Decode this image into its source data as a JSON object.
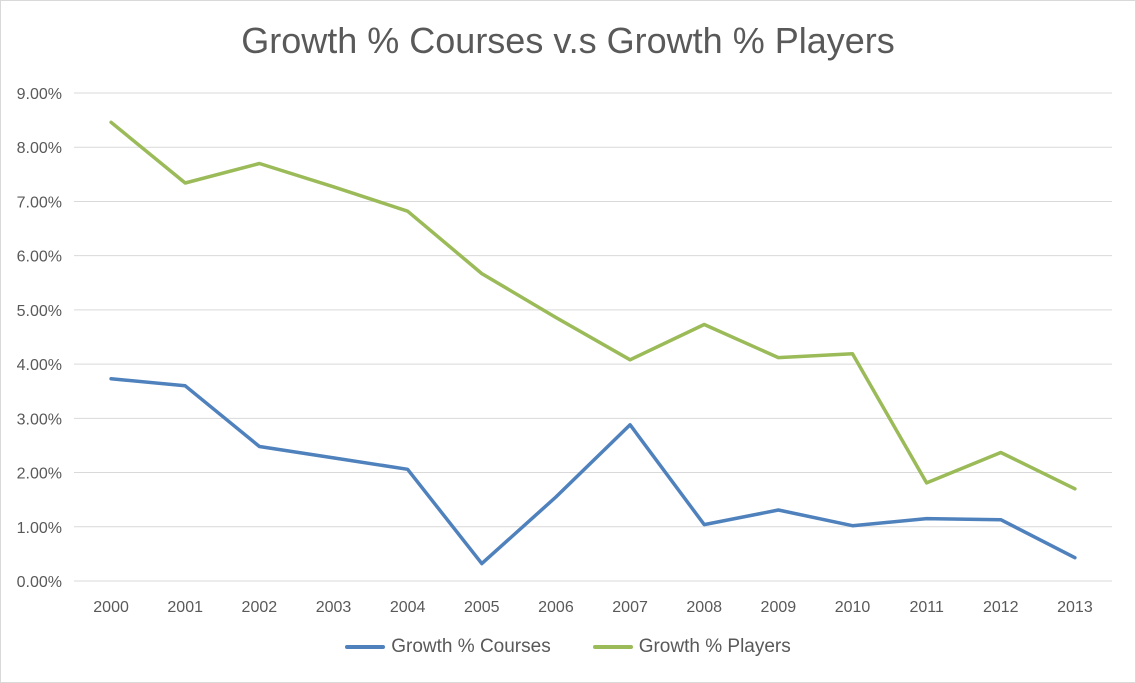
{
  "chart_data": {
    "type": "line",
    "title": "Growth % Courses v.s Growth % Players",
    "xlabel": "",
    "ylabel": "",
    "categories": [
      "2000",
      "2001",
      "2002",
      "2003",
      "2004",
      "2005",
      "2006",
      "2007",
      "2008",
      "2009",
      "2010",
      "2011",
      "2012",
      "2013"
    ],
    "ylim": [
      0,
      9
    ],
    "yticks": [
      "0.00%",
      "1.00%",
      "2.00%",
      "3.00%",
      "4.00%",
      "5.00%",
      "6.00%",
      "7.00%",
      "8.00%",
      "9.00%"
    ],
    "grid": true,
    "legend_position": "bottom",
    "series": [
      {
        "name": "Growth % Courses",
        "color": "#4f81bd",
        "values": [
          3.73,
          3.6,
          2.48,
          2.27,
          2.06,
          0.32,
          1.55,
          2.88,
          1.04,
          1.31,
          1.02,
          1.15,
          1.13,
          0.43
        ]
      },
      {
        "name": "Growth % Players",
        "color": "#9bbb59",
        "values": [
          8.46,
          7.34,
          7.7,
          7.27,
          6.82,
          5.67,
          4.86,
          4.08,
          4.73,
          4.12,
          4.19,
          1.81,
          2.37,
          1.7
        ]
      }
    ]
  }
}
